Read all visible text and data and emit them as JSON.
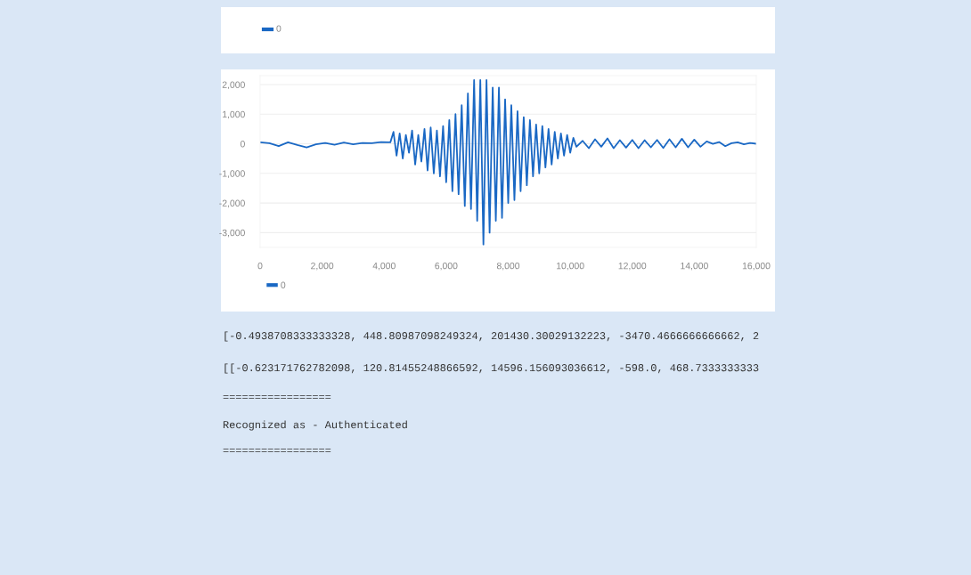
{
  "chart_data": {
    "type": "line",
    "x": [
      0,
      300,
      600,
      900,
      1200,
      1500,
      1800,
      2100,
      2400,
      2700,
      3000,
      3300,
      3600,
      3900,
      4200,
      4300,
      4400,
      4500,
      4600,
      4700,
      4800,
      4900,
      5000,
      5100,
      5200,
      5300,
      5400,
      5500,
      5600,
      5700,
      5800,
      5900,
      6000,
      6100,
      6200,
      6300,
      6400,
      6500,
      6600,
      6700,
      6800,
      6900,
      7000,
      7100,
      7200,
      7300,
      7400,
      7500,
      7600,
      7700,
      7800,
      7900,
      8000,
      8100,
      8200,
      8300,
      8400,
      8500,
      8600,
      8700,
      8800,
      8900,
      9000,
      9100,
      9200,
      9300,
      9400,
      9500,
      9600,
      9700,
      9800,
      9900,
      10000,
      10100,
      10200,
      10400,
      10600,
      10800,
      11000,
      11200,
      11400,
      11600,
      11800,
      12000,
      12200,
      12400,
      12600,
      12800,
      13000,
      13200,
      13400,
      13600,
      13800,
      14000,
      14200,
      14400,
      14600,
      14800,
      15000,
      15200,
      15400,
      15600,
      15800,
      16000
    ],
    "series": [
      {
        "name": "0",
        "color": "#1a68c4",
        "values": [
          50,
          20,
          -80,
          50,
          -40,
          -120,
          -20,
          30,
          -30,
          40,
          -20,
          30,
          20,
          60,
          50,
          400,
          -400,
          350,
          -500,
          300,
          -300,
          450,
          -700,
          300,
          -600,
          500,
          -900,
          550,
          -1000,
          450,
          -1100,
          600,
          -1300,
          800,
          -1600,
          1000,
          -1700,
          1300,
          -2100,
          1700,
          -2200,
          2150,
          -2600,
          2150,
          -3400,
          2150,
          -3000,
          1900,
          -2600,
          1900,
          -2500,
          1500,
          -2000,
          1300,
          -1900,
          1100,
          -1600,
          900,
          -1400,
          800,
          -1100,
          650,
          -1000,
          600,
          -800,
          500,
          -700,
          400,
          -500,
          350,
          -400,
          300,
          -300,
          200,
          -100,
          100,
          -150,
          150,
          -100,
          180,
          -150,
          120,
          -130,
          130,
          -150,
          120,
          -120,
          130,
          -140,
          150,
          -120,
          170,
          -120,
          140,
          -100,
          80,
          0,
          60,
          -80,
          20,
          50,
          -20,
          30,
          0
        ]
      }
    ],
    "xlim": [
      0,
      16000
    ],
    "ylim": [
      -3500,
      2300
    ],
    "xticks": [
      {
        "value": 0,
        "label": "0"
      },
      {
        "value": 2000,
        "label": "2,000"
      },
      {
        "value": 4000,
        "label": "4,000"
      },
      {
        "value": 6000,
        "label": "6,000"
      },
      {
        "value": 8000,
        "label": "8,000"
      },
      {
        "value": 10000,
        "label": "10,000"
      },
      {
        "value": 12000,
        "label": "12,000"
      },
      {
        "value": 14000,
        "label": "14,000"
      },
      {
        "value": 16000,
        "label": "16,000"
      }
    ],
    "yticks": [
      {
        "value": -3000,
        "label": "-3,000"
      },
      {
        "value": -2000,
        "label": "-2,000"
      },
      {
        "value": -1000,
        "label": "-1,000"
      },
      0,
      {
        "value": 1000,
        "label": "1,000"
      },
      {
        "value": 2000,
        "label": "2,000"
      }
    ],
    "grid": "y",
    "legend": "bottom left",
    "marker": "none",
    "line_style": "solid",
    "annotations": [
      "0",
      "[-0.4938708333333328, 448.80987098249324, 201430.30029132223, -3470.4666666666662, 2",
      "[[-0.623171762782098, 120.81455248866592, 14596.156093036612, -598.0, 468.7333333333",
      "=================",
      "Recognized as - Authenticated",
      "================="
    ]
  }
}
